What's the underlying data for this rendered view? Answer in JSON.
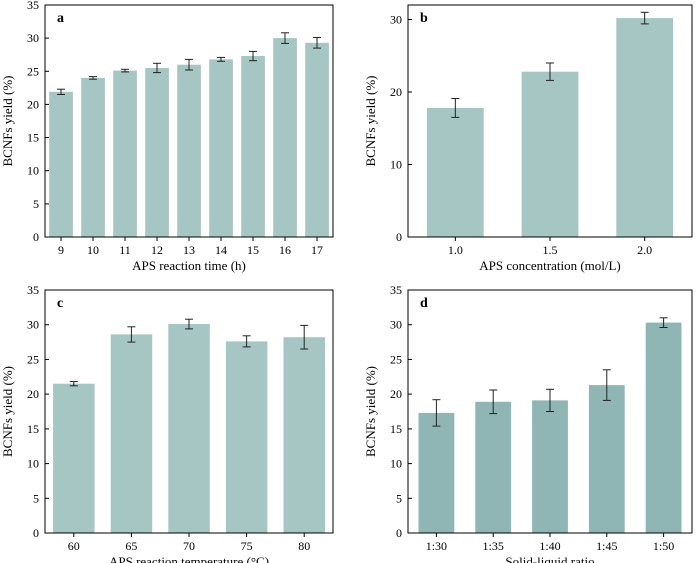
{
  "chart_data": [
    {
      "type": "bar",
      "panel": "a",
      "categories": [
        "9",
        "10",
        "11",
        "12",
        "13",
        "14",
        "15",
        "16",
        "17"
      ],
      "values": [
        21.9,
        24.0,
        25.1,
        25.5,
        26.0,
        26.8,
        27.3,
        30.0,
        29.3
      ],
      "errors": [
        0.4,
        0.2,
        0.2,
        0.7,
        0.8,
        0.3,
        0.7,
        0.8,
        0.8
      ],
      "xlabel": "APS reaction time (h)",
      "ylabel": "BCNFs yield (%)",
      "ylim": [
        0,
        35
      ],
      "yticks": [
        0,
        5,
        10,
        15,
        20,
        25,
        30,
        35
      ],
      "bar_color": "#a6c6c3"
    },
    {
      "type": "bar",
      "panel": "b",
      "categories": [
        "1.0",
        "1.5",
        "2.0"
      ],
      "values": [
        17.8,
        22.8,
        30.2
      ],
      "errors": [
        1.3,
        1.2,
        0.8
      ],
      "xlabel": "APS concentration (mol/L)",
      "ylabel": "BCNFs yield (%)",
      "ylim": [
        0,
        32
      ],
      "yticks": [
        0,
        10,
        20,
        30
      ],
      "bar_color": "#a6c6c3"
    },
    {
      "type": "bar",
      "panel": "c",
      "categories": [
        "60",
        "65",
        "70",
        "75",
        "80"
      ],
      "values": [
        21.5,
        28.6,
        30.1,
        27.6,
        28.2
      ],
      "errors": [
        0.3,
        1.1,
        0.7,
        0.8,
        1.7
      ],
      "xlabel": "APS reaction temperature (°C)",
      "ylabel": "BCNFs yield (%)",
      "ylim": [
        0,
        35
      ],
      "yticks": [
        0,
        5,
        10,
        15,
        20,
        25,
        30,
        35
      ],
      "bar_color": "#a6c6c3"
    },
    {
      "type": "bar",
      "panel": "d",
      "categories": [
        "1:30",
        "1:35",
        "1:40",
        "1:45",
        "1:50"
      ],
      "values": [
        17.3,
        18.9,
        19.1,
        21.3,
        30.3
      ],
      "errors": [
        1.9,
        1.7,
        1.6,
        2.2,
        0.7
      ],
      "xlabel": "Solid-liquid ratio",
      "ylabel": "BCNFs yield (%)",
      "ylim": [
        0,
        35
      ],
      "yticks": [
        0,
        5,
        10,
        15,
        20,
        25,
        30,
        35
      ],
      "bar_color": "#8fb6b5"
    }
  ]
}
